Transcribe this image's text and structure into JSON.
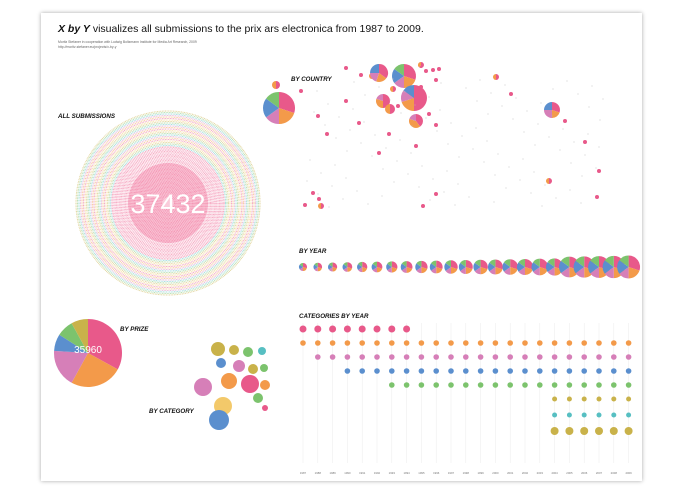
{
  "title": {
    "strong": "X by Y",
    "rest": " visualizes all submissions to the prix ars electronica from 1987 to 2009."
  },
  "credits": [
    "Moritz Stefaner in cooperation with Ludwig Boltzmann Institute for Media Art Research, 2009",
    "http://moritz.stefaner.eu/projects/x-by-y"
  ],
  "sections": {
    "all": "ALL SUBMISSIONS",
    "country": "BY COUNTRY",
    "year": "BY YEAR",
    "categories_year": "CATEGORIES BY YEAR",
    "prize": "BY PRIZE",
    "category": "BY CATEGORY"
  },
  "all_total": "37432",
  "prize_total": "35960",
  "years": [
    "1987",
    "1988",
    "1989",
    "1990",
    "1991",
    "1992",
    "1993",
    "1994",
    "1995",
    "1996",
    "1997",
    "1998",
    "1999",
    "2000",
    "2001",
    "2002",
    "2003",
    "2004",
    "2005",
    "2006",
    "2007",
    "2008",
    "2009"
  ],
  "palette": [
    "#e8598a",
    "#f39a4a",
    "#d67fb8",
    "#5b8fce",
    "#7cc36d",
    "#c9b24a",
    "#57bfc2",
    "#9a7dc4",
    "#f3c96a"
  ]
}
